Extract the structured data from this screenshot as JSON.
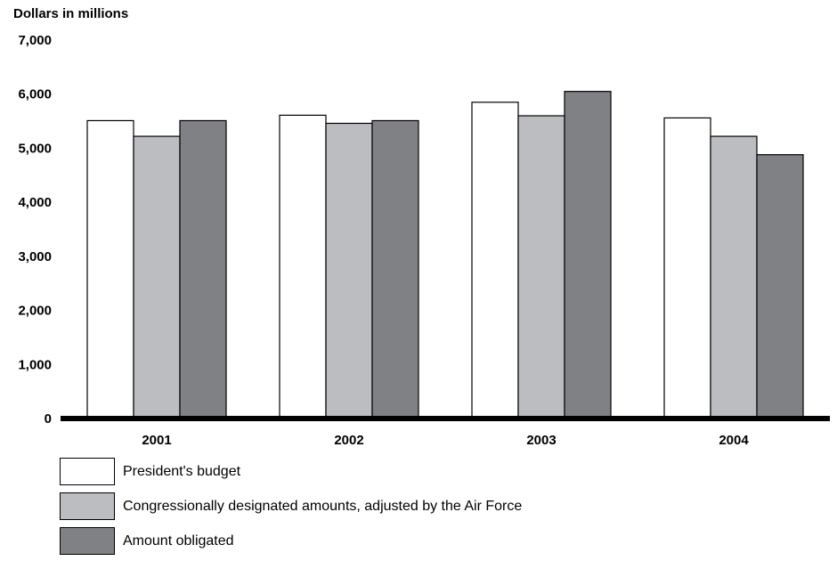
{
  "chart_data": {
    "type": "bar",
    "ylabel": "Dollars in millions",
    "xlabel": "",
    "title": "",
    "categories": [
      "2001",
      "2002",
      "2003",
      "2004"
    ],
    "ylim": [
      0,
      7000
    ],
    "yticks": [
      "0",
      "1,000",
      "2,000",
      "3,000",
      "4,000",
      "5,000",
      "6,000",
      "7,000"
    ],
    "grid": false,
    "legend_position": "bottom-left",
    "series": [
      {
        "name": "President's budget",
        "values": [
          5510,
          5610,
          5850,
          5560
        ],
        "color": "#ffffff"
      },
      {
        "name": "Congressionally designated amounts, adjusted by the Air Force",
        "values": [
          5220,
          5460,
          5600,
          5220
        ],
        "color": "#bcbdc0"
      },
      {
        "name": "Amount obligated",
        "values": [
          5510,
          5510,
          6050,
          4880
        ],
        "color": "#808184"
      }
    ]
  }
}
